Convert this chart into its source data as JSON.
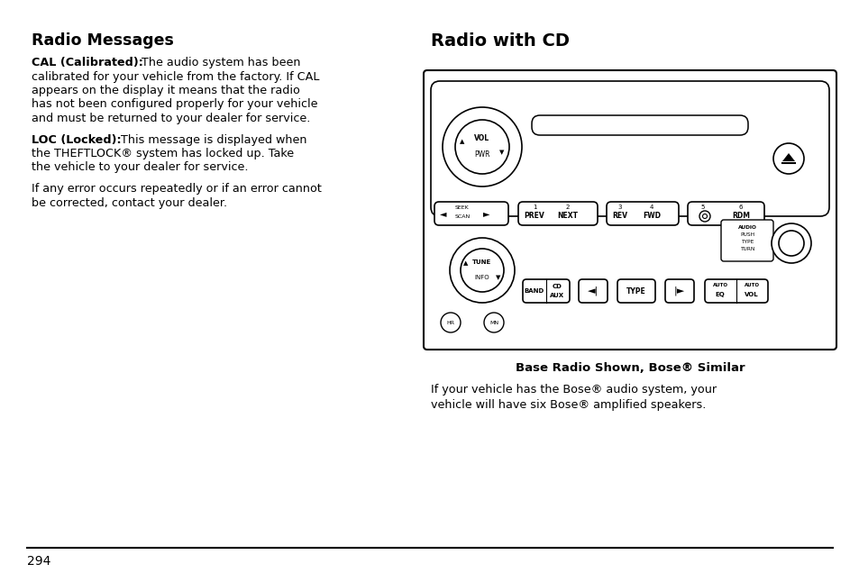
{
  "bg_color": "#ffffff",
  "left_title": "Radio Messages",
  "right_title": "Radio with CD",
  "page_number": "294",
  "caption": "Base Radio Shown, Bose® Similar",
  "right_body_line1": "If your vehicle has the Bose® audio system, your",
  "right_body_line2": "vehicle will have six Bose® amplified speakers."
}
